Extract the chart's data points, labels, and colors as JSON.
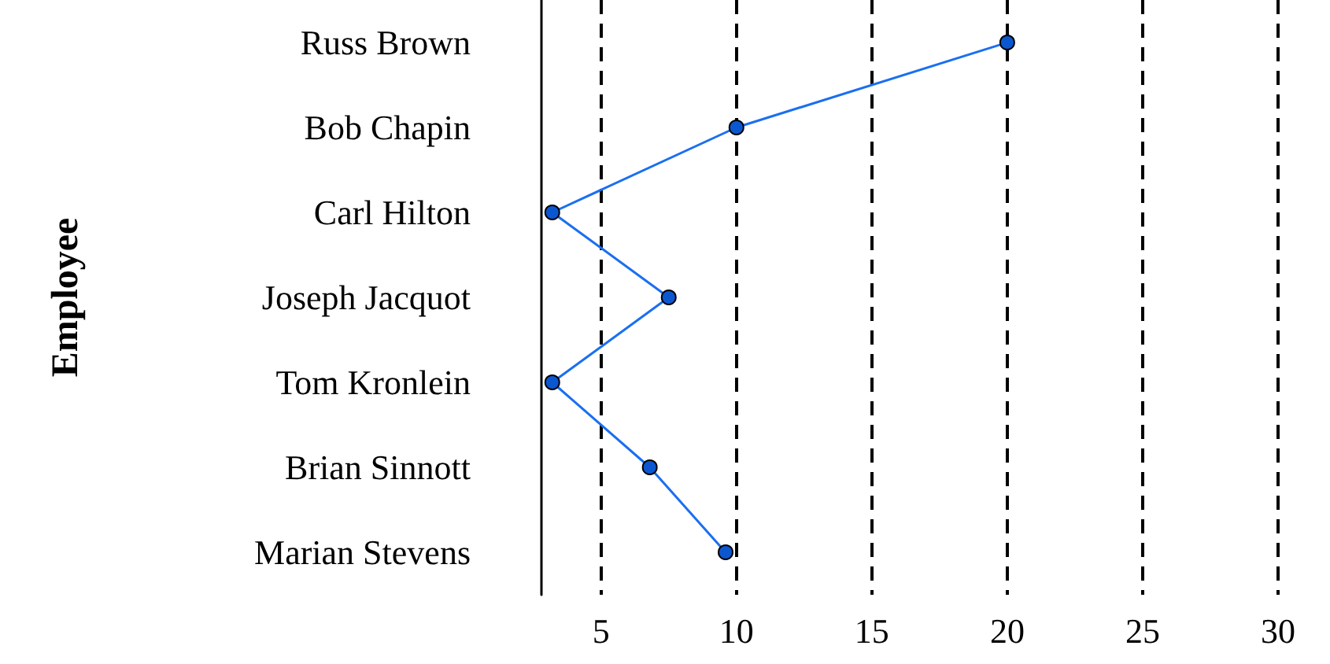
{
  "chart_data": {
    "type": "line",
    "orientation": "horizontal",
    "ylabel": "Employee",
    "categories": [
      "Russ Brown",
      "Bob Chapin",
      "Carl Hilton",
      "Joseph Jacquot",
      "Tom Kronlein",
      "Brian Sinnott",
      "Marian Stevens"
    ],
    "series": [
      {
        "color": "#1a6ff0",
        "values": [
          20,
          10,
          3.2,
          7.5,
          3.2,
          6.8,
          9.6
        ]
      }
    ],
    "xlim": [
      2.8,
      30
    ],
    "xticks": [
      5,
      10,
      15,
      20,
      25,
      30
    ],
    "grid": "x",
    "marker": "circle",
    "line_style": "solid"
  }
}
